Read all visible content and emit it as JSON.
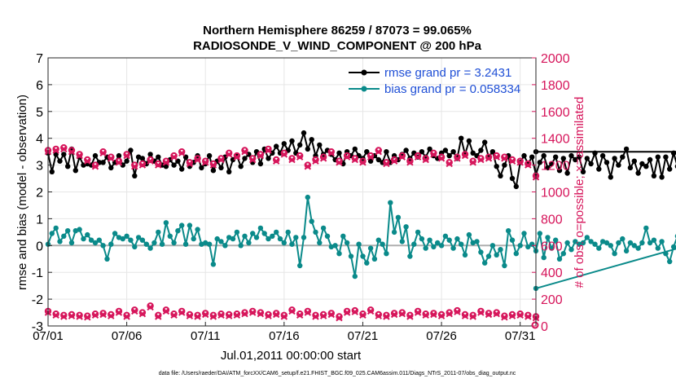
{
  "chart_data": {
    "type": "line",
    "title": "Northern Hemisphere 86259 / 87073 = 99.065%",
    "subtitle": "RADIOSONDE_V_WIND_COMPONENT @ 200 hPa",
    "xlabel": "Jul.01,2011 00:00:00 start",
    "ylabel": "rmse and bias (model - observation)",
    "y2label": "# of obs: o=possible; ×=assimilated",
    "footer": "data file: /Users/raeder/DAI/ATM_forcXX/CAM6_setup/f.e21.FHIST_BGC.f09_025.CAM6assim.011/Diags_NTrS_2011-07/obs_diag_output.nc",
    "x_ticks": [
      "07/01",
      "07/06",
      "07/11",
      "07/16",
      "07/21",
      "07/26",
      "07/31"
    ],
    "x_tick_days": [
      0,
      5,
      10,
      15,
      20,
      25,
      30
    ],
    "xlim": [
      0,
      31
    ],
    "ylim": [
      -3,
      7
    ],
    "y_ticks": [
      -3,
      -2,
      -1,
      0,
      1,
      2,
      3,
      4,
      5,
      6,
      7
    ],
    "y2lim": [
      0,
      2000
    ],
    "y2_ticks": [
      0,
      200,
      400,
      600,
      800,
      1000,
      1200,
      1400,
      1600,
      1800,
      2000
    ],
    "colors": {
      "rmse": "#000000",
      "bias": "#0a8a8a",
      "obs": "#d6145a",
      "zero_line": "#b0b0b0"
    },
    "legend": [
      {
        "name": "rmse grand pr = 3.2431",
        "color": "#000000"
      },
      {
        "name": "bias grand pr = 0.058334",
        "color": "#0a8a8a"
      }
    ],
    "series": [
      {
        "name": "rmse",
        "axis": "left",
        "x_start": 0,
        "x_step": 0.25,
        "values": [
          3.45,
          2.75,
          3.4,
          3.15,
          3.4,
          2.95,
          3.6,
          2.8,
          3.3,
          3.0,
          3.05,
          3.0,
          3.35,
          3.1,
          3.1,
          3.3,
          2.9,
          3.1,
          3.35,
          3.0,
          3.15,
          3.55,
          2.6,
          3.3,
          3.25,
          3.05,
          3.4,
          3.15,
          3.3,
          3.0,
          2.95,
          3.2,
          3.0,
          3.15,
          2.85,
          3.3,
          2.95,
          3.1,
          3.35,
          2.9,
          3.05,
          3.35,
          2.8,
          3.15,
          2.9,
          3.3,
          2.75,
          3.2,
          3.35,
          2.95,
          3.25,
          3.4,
          3.1,
          3.5,
          3.05,
          3.6,
          3.25,
          3.45,
          3.7,
          3.45,
          3.8,
          3.55,
          3.9,
          3.45,
          3.75,
          4.2,
          3.6,
          3.95,
          3.35,
          3.75,
          3.4,
          3.55,
          3.4,
          3.2,
          3.45,
          3.05,
          3.5,
          3.35,
          3.6,
          3.35,
          3.25,
          3.5,
          3.15,
          3.35,
          3.2,
          3.1,
          3.5,
          3.1,
          3.35,
          3.2,
          3.4,
          3.55,
          3.25,
          3.45,
          3.3,
          3.5,
          3.3,
          3.6,
          3.35,
          3.25,
          3.45,
          3.55,
          3.35,
          3.5,
          3.25,
          4.0,
          3.4,
          3.9,
          3.45,
          3.35,
          3.55,
          3.85,
          3.3,
          3.5,
          2.95,
          2.6,
          3.0,
          3.35,
          2.5,
          2.2,
          3.1,
          3.35,
          3.05,
          3.3,
          2.65,
          3.1,
          3.35,
          2.9,
          3.05,
          3.3,
          2.8,
          3.25,
          2.7,
          3.35,
          3.2,
          3.3,
          2.75,
          3.25,
          3.05,
          3.45,
          2.85,
          3.35,
          3.1,
          2.55,
          3.25,
          3.0,
          3.3,
          3.6,
          2.9,
          3.15,
          2.7,
          3.05,
          2.95,
          3.2,
          2.6,
          3.3,
          2.55,
          3.3,
          2.85,
          3.45,
          2.95,
          3.3,
          2.6,
          3.4,
          3.5
        ],
        "last_x": 31.0
      },
      {
        "name": "bias",
        "axis": "left",
        "x_start": 0,
        "x_step": 0.25,
        "values": [
          0.05,
          0.45,
          0.65,
          0.15,
          0.35,
          0.55,
          0.1,
          0.55,
          0.6,
          0.25,
          0.4,
          0.2,
          0.1,
          0.2,
          0.0,
          -0.5,
          0.05,
          0.45,
          0.3,
          0.25,
          0.35,
          0.2,
          -0.05,
          0.3,
          0.2,
          0.05,
          -0.1,
          0.1,
          0.5,
          0.05,
          0.85,
          0.35,
          0.1,
          0.55,
          0.75,
          0.05,
          0.75,
          0.25,
          0.6,
          0.05,
          0.1,
          0.05,
          -0.7,
          0.25,
          0.15,
          0.0,
          0.3,
          0.25,
          0.5,
          0.0,
          0.35,
          0.1,
          0.45,
          0.3,
          0.65,
          0.45,
          0.25,
          0.35,
          0.5,
          0.25,
          0.1,
          0.5,
          0.05,
          0.3,
          -0.75,
          0.3,
          1.8,
          0.9,
          0.5,
          0.1,
          0.65,
          0.35,
          -0.05,
          0.0,
          -0.3,
          0.35,
          0.1,
          -0.4,
          -1.15,
          0.05,
          -0.4,
          -0.65,
          -0.1,
          -0.5,
          0.2,
          0.05,
          -0.3,
          1.6,
          0.5,
          1.05,
          0.15,
          0.7,
          -0.4,
          0.05,
          0.5,
          0.25,
          -0.1,
          0.2,
          -0.05,
          0.1,
          0.0,
          0.35,
          0.2,
          -0.1,
          0.25,
          0.05,
          -0.35,
          0.4,
          0.1,
          0.15,
          -0.25,
          -0.65,
          -0.4,
          0.0,
          -0.35,
          -0.15,
          -0.75,
          0.55,
          0.2,
          -0.3,
          0.0,
          0.45,
          -0.05,
          0.05,
          -0.2,
          0.45,
          -0.45,
          0.3,
          -0.1,
          0.2,
          -0.5,
          -0.3,
          0.1,
          -0.15,
          0.15,
          0.05,
          0.1,
          0.3,
          0.15,
          0.05,
          -0.1,
          0.15,
          0.1,
          0.0,
          -0.3,
          0.1,
          0.25,
          -0.2,
          0.1,
          0.0,
          -0.1,
          0.1,
          0.65,
          0.1,
          0.2,
          -0.1,
          0.15,
          -0.3,
          -0.6,
          -0.05,
          0.35,
          -0.1,
          0.05,
          -0.3,
          -0.25,
          0.1
        ],
        "last_x": 31.0,
        "last_value": -1.6
      },
      {
        "name": "obs possible",
        "axis": "right",
        "marker": "o",
        "x_start": 0,
        "x_step": 0.5,
        "values": [
          1310,
          1320,
          1330,
          1310,
          1280,
          1240,
          1200,
          1300,
          1260,
          1230,
          1280,
          1200,
          1210,
          1240,
          1210,
          1230,
          1270,
          1300,
          1220,
          1250,
          1230,
          1210,
          1250,
          1290,
          1270,
          1310,
          1250,
          1280,
          1320,
          1240,
          1290,
          1250,
          1270,
          1200,
          1240,
          1260,
          1300,
          1230,
          1270,
          1250,
          1230,
          1270,
          1310,
          1220,
          1240,
          1270,
          1230,
          1270,
          1250,
          1290,
          1260,
          1220,
          1260,
          1280,
          1230,
          1250,
          1260,
          1270,
          1260,
          1240,
          1230,
          1210,
          1120
        ]
      },
      {
        "name": "obs assimilated",
        "axis": "right",
        "marker": "x",
        "x_start": 0,
        "x_step": 0.5,
        "values": [
          1300,
          1310,
          1320,
          1300,
          1270,
          1230,
          1190,
          1290,
          1250,
          1220,
          1270,
          1190,
          1200,
          1230,
          1200,
          1220,
          1260,
          1290,
          1210,
          1240,
          1220,
          1200,
          1240,
          1280,
          1260,
          1300,
          1240,
          1270,
          1310,
          1230,
          1280,
          1240,
          1260,
          1190,
          1230,
          1250,
          1290,
          1220,
          1260,
          1240,
          1220,
          1260,
          1300,
          1210,
          1230,
          1260,
          1220,
          1260,
          1240,
          1280,
          1250,
          1210,
          1250,
          1270,
          1220,
          1240,
          1250,
          1260,
          1250,
          1230,
          1220,
          1200,
          1110
        ]
      },
      {
        "name": "obs low possible",
        "axis": "right",
        "marker": "o",
        "x_start": 0,
        "x_step": 0.5,
        "values": [
          110,
          90,
          80,
          85,
          80,
          75,
          90,
          95,
          85,
          110,
          80,
          120,
          100,
          150,
          80,
          120,
          90,
          110,
          85,
          80,
          95,
          80,
          90,
          85,
          90,
          100,
          110,
          100,
          85,
          95,
          80,
          120,
          90,
          110,
          80,
          85,
          95,
          70,
          110,
          115,
          90,
          120,
          85,
          80,
          95,
          100,
          80,
          110,
          90,
          95,
          85,
          100,
          115,
          85,
          80,
          110,
          95,
          100,
          75,
          85,
          90,
          80,
          70
        ]
      },
      {
        "name": "obs low assimilated",
        "axis": "right",
        "marker": "x",
        "x_start": 0,
        "x_step": 0.5,
        "values": [
          100,
          80,
          70,
          75,
          70,
          65,
          80,
          85,
          75,
          100,
          70,
          110,
          90,
          140,
          70,
          110,
          80,
          100,
          75,
          70,
          85,
          70,
          80,
          75,
          80,
          90,
          100,
          90,
          75,
          85,
          70,
          110,
          80,
          100,
          70,
          75,
          85,
          60,
          100,
          105,
          80,
          110,
          75,
          70,
          85,
          90,
          70,
          100,
          80,
          85,
          75,
          90,
          105,
          75,
          70,
          100,
          85,
          90,
          65,
          75,
          80,
          70,
          60
        ]
      }
    ]
  }
}
